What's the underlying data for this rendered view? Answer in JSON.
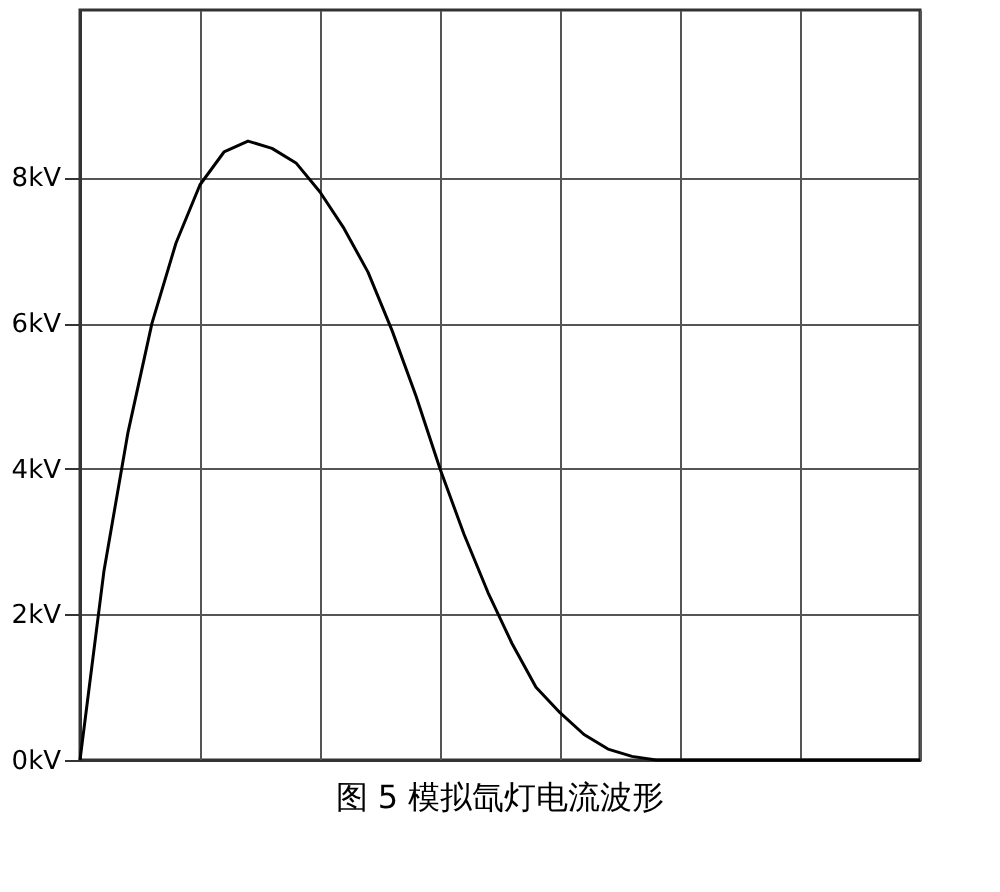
{
  "chart_data": {
    "type": "line",
    "title": "图 5    模拟氙灯电流波形",
    "categories": [
      null,
      null,
      null,
      null,
      null,
      null,
      null,
      null,
      null,
      null,
      null,
      null,
      null,
      null,
      null,
      null,
      null,
      null,
      null,
      null,
      null,
      null,
      null,
      null,
      null,
      null,
      null,
      null,
      null,
      null,
      null,
      null,
      null,
      null,
      null,
      null
    ],
    "series": [
      {
        "color": "#000000",
        "values": [
          0,
          2.6,
          4.5,
          6.0,
          7.1,
          7.9,
          8.35,
          8.5,
          8.4,
          8.2,
          7.8,
          7.3,
          6.7,
          5.9,
          5.0,
          4.0,
          3.1,
          2.3,
          1.6,
          1.0,
          0.65,
          0.35,
          0.15,
          0.05,
          0,
          0,
          0,
          0,
          0,
          0,
          0,
          0,
          0,
          0,
          0,
          0
        ]
      }
    ],
    "ylim": [
      0,
      10.3
    ],
    "yticks": [
      {
        "value": 0,
        "label": "0kV"
      },
      {
        "value": 2,
        "label": "2kV"
      },
      {
        "value": 4,
        "label": "4kV"
      },
      {
        "value": 6,
        "label": "6kV"
      },
      {
        "value": 8,
        "label": "8kV"
      }
    ],
    "tick_labels": "y",
    "grid": true,
    "marker": "none",
    "line_style": "solid"
  }
}
